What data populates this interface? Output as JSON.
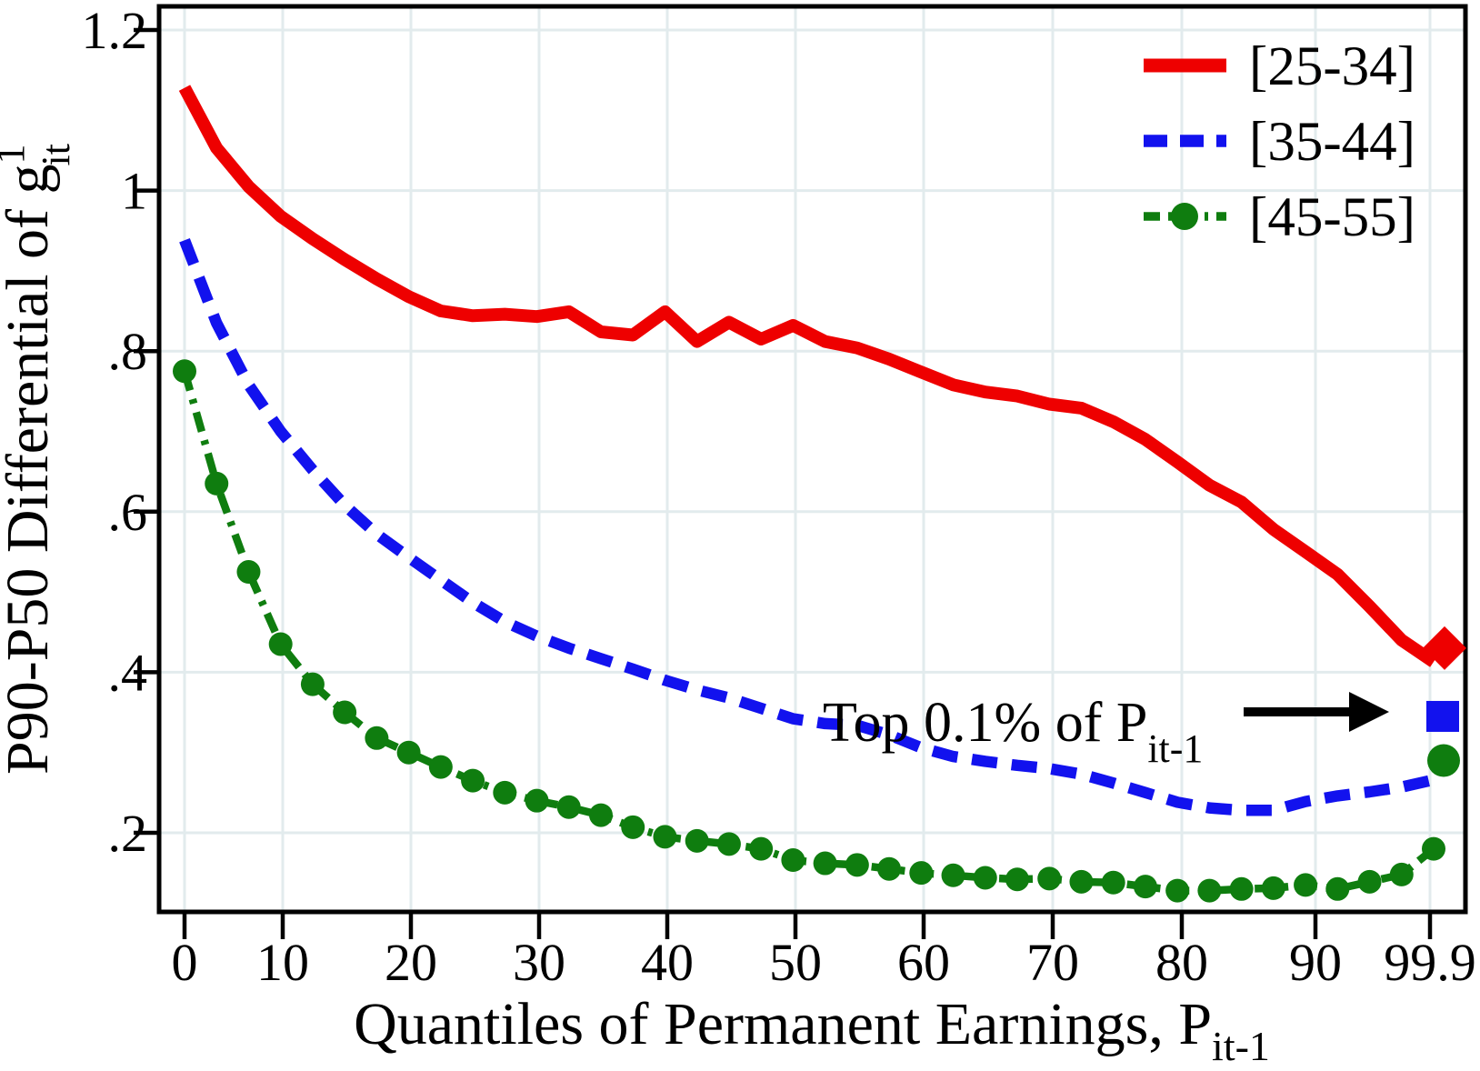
{
  "colors": {
    "red": "#ee0000",
    "blue": "#1212ee",
    "green": "#0f7d0f",
    "grid": "#e2ebed",
    "axis": "#000000",
    "background": "#ffffff"
  },
  "annotation": {
    "text_main": "Top 0.1% of P",
    "text_sub": "it-1",
    "arrow": "right-arrow"
  },
  "labels": {
    "y_axis_main": "P90-P50 Differential of g",
    "y_axis_sup": "1",
    "y_axis_sub": "it",
    "x_axis_main": "Quantiles of Permanent Earnings, P",
    "x_axis_sub": "it-1"
  },
  "chart_data": {
    "type": "line",
    "title": "",
    "xlabel": "Quantiles of Permanent Earnings, P_it-1",
    "ylabel": "P90-P50 Differential of g^1_it",
    "grid": "on",
    "legend_position": "top-right",
    "ylim": [
      0.1,
      1.23
    ],
    "y_tick_labels": [
      "1.2",
      "1",
      ".8",
      ".6",
      ".4",
      ".2"
    ],
    "y_tick_values": [
      1.2,
      1.0,
      0.8,
      0.6,
      0.4,
      0.2
    ],
    "x_tick_labels": [
      "0",
      "10",
      "20",
      "30",
      "40",
      "50",
      "60",
      "70",
      "80",
      "90",
      "99.9"
    ],
    "x_quantiles": [
      0,
      2.5,
      5,
      7.5,
      10,
      12.5,
      15,
      17.5,
      20,
      22.5,
      25,
      27.5,
      30,
      32.5,
      35,
      37.5,
      40,
      42.5,
      45,
      47.5,
      50,
      52.5,
      55,
      57.5,
      60,
      62.5,
      65,
      67.5,
      70,
      72.5,
      75,
      77.5,
      80,
      82.5,
      85,
      87.5,
      90,
      92.5,
      95,
      99.9
    ],
    "series": [
      {
        "name": "[25-34]",
        "color": "#ee0000",
        "style": "solid",
        "values": [
          1.128,
          1.053,
          1.005,
          0.968,
          0.94,
          0.914,
          0.89,
          0.868,
          0.85,
          0.844,
          0.846,
          0.843,
          0.849,
          0.824,
          0.82,
          0.849,
          0.812,
          0.836,
          0.815,
          0.832,
          0.812,
          0.804,
          0.79,
          0.774,
          0.758,
          0.749,
          0.744,
          0.734,
          0.729,
          0.712,
          0.69,
          0.662,
          0.633,
          0.612,
          0.578,
          0.55,
          0.522,
          0.482,
          0.44,
          0.413
        ],
        "top01_marker": {
          "shape": "diamond",
          "value": 0.43
        }
      },
      {
        "name": "[35-44]",
        "color": "#1212ee",
        "style": "dashed",
        "values": [
          0.938,
          0.835,
          0.758,
          0.7,
          0.652,
          0.608,
          0.572,
          0.543,
          0.515,
          0.487,
          0.463,
          0.445,
          0.43,
          0.417,
          0.404,
          0.39,
          0.378,
          0.368,
          0.355,
          0.342,
          0.336,
          0.334,
          0.322,
          0.306,
          0.295,
          0.289,
          0.284,
          0.28,
          0.273,
          0.262,
          0.25,
          0.238,
          0.231,
          0.228,
          0.228,
          0.239,
          0.246,
          0.251,
          0.257,
          0.266
        ],
        "top01_marker": {
          "shape": "square",
          "value": 0.345
        }
      },
      {
        "name": "[45-55]",
        "color": "#0f7d0f",
        "style": "dash-dot-circle",
        "values": [
          0.775,
          0.635,
          0.525,
          0.435,
          0.385,
          0.35,
          0.318,
          0.3,
          0.282,
          0.265,
          0.25,
          0.24,
          0.232,
          0.222,
          0.207,
          0.195,
          0.19,
          0.186,
          0.18,
          0.166,
          0.162,
          0.16,
          0.155,
          0.15,
          0.147,
          0.144,
          0.142,
          0.143,
          0.139,
          0.138,
          0.133,
          0.128,
          0.128,
          0.13,
          0.131,
          0.135,
          0.13,
          0.139,
          0.148,
          0.18
        ],
        "top01_marker": {
          "shape": "circle",
          "value": 0.29
        }
      }
    ]
  }
}
